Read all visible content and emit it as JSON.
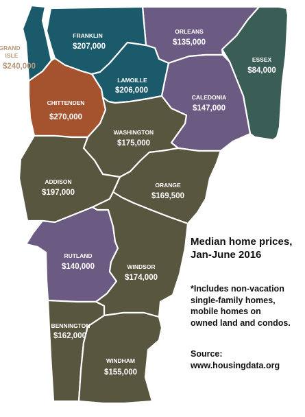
{
  "map": {
    "colors": {
      "teal": "#1b5a6b",
      "purple": "#6b5a82",
      "olive": "#58563f",
      "rust": "#a5532f",
      "green": "#3a5d55",
      "outside_label": "#b9987a",
      "border": "#ffffff"
    },
    "counties": [
      {
        "name": "FRANKLIN",
        "price": "$207,000",
        "color": "teal"
      },
      {
        "name": "ORLEANS",
        "price": "$135,000",
        "color": "purple"
      },
      {
        "name": "ESSEX",
        "price": "$84,000",
        "color": "green"
      },
      {
        "name": "GRAND",
        "name2": "ISLE",
        "price": "$240,000",
        "color": "teal"
      },
      {
        "name": "LAMOILLE",
        "price": "$206,000",
        "color": "teal"
      },
      {
        "name": "CALEDONIA",
        "price": "$147,000",
        "color": "purple"
      },
      {
        "name": "CHITTENDEN",
        "price": "$270,000",
        "color": "rust"
      },
      {
        "name": "WASHINGTON",
        "price": "$175,000",
        "color": "olive"
      },
      {
        "name": "ADDISON",
        "price": "$197,000",
        "color": "olive"
      },
      {
        "name": "ORANGE",
        "price": "$169,500",
        "color": "olive"
      },
      {
        "name": "RUTLAND",
        "price": "$140,000",
        "color": "purple"
      },
      {
        "name": "WINDSOR",
        "price": "$174,000",
        "color": "olive"
      },
      {
        "name": "BENNINGTON",
        "price": "$162,000",
        "color": "olive"
      },
      {
        "name": "WINDHAM",
        "price": "$155,000",
        "color": "olive"
      }
    ]
  },
  "title": {
    "line1": "Median home prices,",
    "line2": "Jan-June 2016"
  },
  "note": {
    "line1": "*Includes non-vacation",
    "line2": "single-family homes,",
    "line3": "mobile homes on",
    "line4": "owned land and condos."
  },
  "source": {
    "label": "Source:",
    "url": "www.housingdata.org"
  }
}
